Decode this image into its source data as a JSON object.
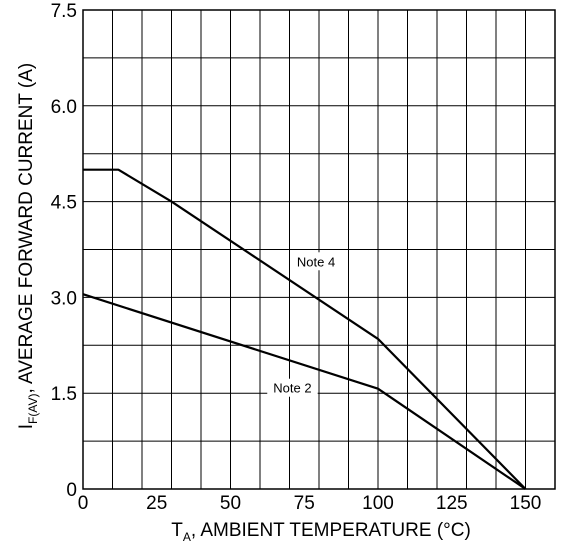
{
  "chart_data": {
    "type": "line",
    "xlabel_main": "T",
    "xlabel_sub": "A",
    "xlabel_rest": ", AMBIENT TEMPERATURE (°C)",
    "ylabel_main": "I",
    "ylabel_sub": "F(AV)",
    "ylabel_rest": ", AVERAGE FORWARD CURRENT (A)",
    "xlim": [
      0,
      160
    ],
    "ylim": [
      0,
      7.5
    ],
    "x_ticks": [
      "0",
      "25",
      "50",
      "75",
      "100",
      "125",
      "150"
    ],
    "y_ticks": [
      "0",
      "1.5",
      "3.0",
      "4.5",
      "6.0",
      "7.5"
    ],
    "grid": true,
    "series": [
      {
        "name": "Note 4",
        "x": [
          0,
          12,
          30,
          100,
          150
        ],
        "y": [
          5.0,
          5.0,
          4.5,
          2.35,
          0
        ]
      },
      {
        "name": "Note 2",
        "x": [
          0,
          100,
          150
        ],
        "y": [
          3.05,
          1.57,
          0
        ]
      }
    ],
    "annotations": [
      {
        "text": "Note 4",
        "x": 79,
        "y": 3.55
      },
      {
        "text": "Note 2",
        "x": 71,
        "y": 1.57
      }
    ]
  }
}
